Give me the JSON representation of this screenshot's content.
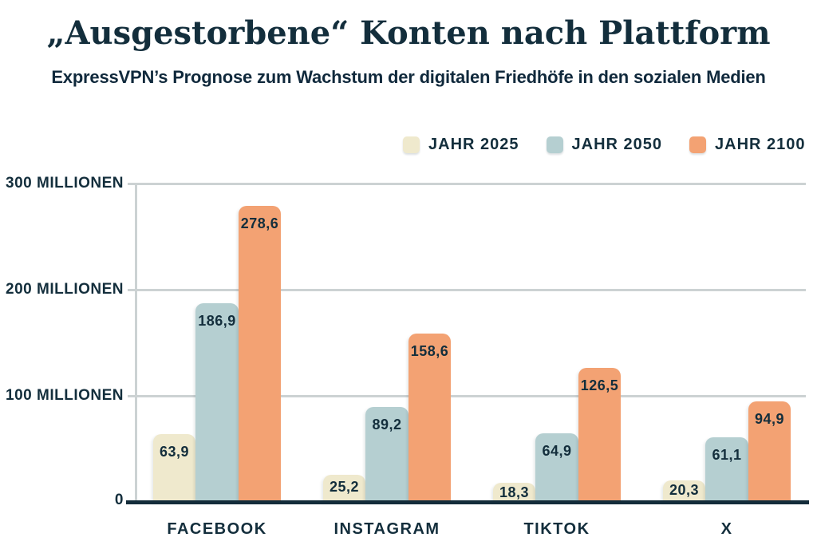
{
  "title": "„Ausgestorbene“ Konten nach Plattform",
  "subtitle": "ExpressVPN’s Prognose zum Wachstum der digitalen Friedhöfe in den sozialen Medien",
  "legend": [
    {
      "label": "JAHR 2025",
      "color": "#efe9cd"
    },
    {
      "label": "JAHR 2050",
      "color": "#b5cfd1"
    },
    {
      "label": "JAHR 2100",
      "color": "#f3a273"
    }
  ],
  "colors": {
    "text_navy": "#132e3c",
    "axis_dark": "#132c3a",
    "gridline_gray": "#ccd2d3",
    "background": "#ffffff"
  },
  "chart_data": {
    "type": "bar",
    "title": "„Ausgestorbene“ Konten nach Plattform",
    "subtitle": "ExpressVPN’s Prognose zum Wachstum der digitalen Friedhöfe in den sozialen Medien",
    "categories": [
      "FACEBOOK",
      "INSTAGRAM",
      "TIKTOK",
      "X"
    ],
    "series": [
      {
        "name": "JAHR 2025",
        "color": "#efe9cd",
        "values": [
          63.9,
          25.2,
          18.3,
          20.3
        ]
      },
      {
        "name": "JAHR 2050",
        "color": "#b5cfd1",
        "values": [
          186.9,
          89.2,
          64.9,
          61.1
        ]
      },
      {
        "name": "JAHR 2100",
        "color": "#f3a273",
        "values": [
          278.6,
          158.6,
          126.5,
          94.9
        ]
      }
    ],
    "value_unit": "Millionen",
    "decimal_separator": ",",
    "ylabel": "",
    "xlabel": "",
    "ylim": [
      0,
      300
    ],
    "yticks": [
      "300 MILLIONEN",
      "200 MILLIONEN",
      "100 MILLIONEN",
      "0"
    ],
    "grid": true,
    "legend_position": "top-right"
  }
}
